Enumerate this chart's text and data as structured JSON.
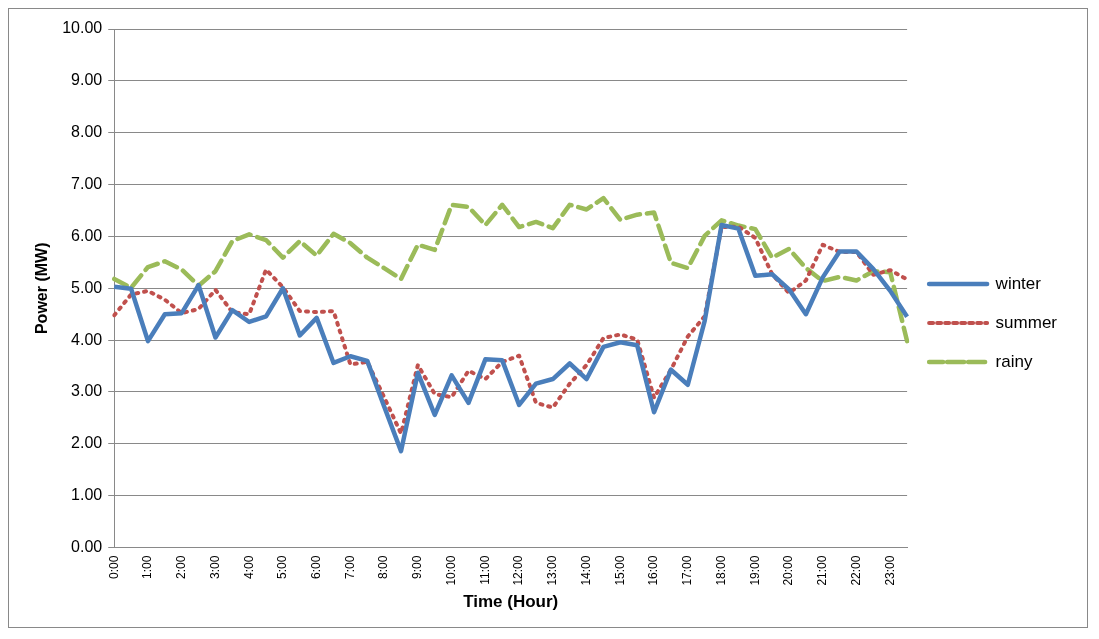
{
  "chart_data": {
    "type": "line",
    "xlabel": "Time (Hour)",
    "ylabel": "Power (MW)",
    "categories": [
      "0:00",
      null,
      "1:00",
      null,
      "2:00",
      null,
      "3:00",
      null,
      "4:00",
      null,
      "5:00",
      null,
      "6:00",
      null,
      "7:00",
      null,
      "8:00",
      null,
      "9:00",
      null,
      "10:00",
      null,
      "11:00",
      null,
      "12:00",
      null,
      "13:00",
      null,
      "14:00",
      null,
      "15:00",
      null,
      "16:00",
      null,
      "17:00",
      null,
      "18:00",
      null,
      "19:00",
      null,
      "20:00",
      null,
      "21:00",
      null,
      "22:00",
      null,
      "23:00",
      null
    ],
    "series": [
      {
        "name": "winter",
        "color": "#4a7ebb",
        "line_style": "solid",
        "values": [
          5.03,
          4.99,
          3.98,
          4.5,
          4.52,
          5.06,
          4.05,
          4.58,
          4.35,
          4.46,
          5.0,
          4.09,
          4.43,
          3.56,
          3.69,
          3.6,
          2.72,
          1.86,
          3.37,
          2.56,
          3.32,
          2.79,
          3.63,
          3.61,
          2.75,
          3.16,
          3.25,
          3.55,
          3.25,
          3.87,
          3.96,
          3.9,
          2.61,
          3.43,
          3.14,
          4.37,
          6.22,
          6.15,
          5.24,
          5.27,
          4.98,
          4.5,
          5.21,
          5.71,
          5.71,
          5.37,
          4.95,
          4.45
        ]
      },
      {
        "name": "summer",
        "color": "#c0504d",
        "line_style": "dotted",
        "values": [
          4.48,
          4.88,
          4.95,
          4.78,
          4.52,
          4.6,
          4.97,
          4.54,
          4.5,
          5.36,
          5.02,
          4.56,
          4.54,
          4.56,
          3.53,
          3.58,
          2.9,
          2.2,
          3.52,
          2.96,
          2.9,
          3.41,
          3.25,
          3.58,
          3.7,
          2.79,
          2.7,
          3.16,
          3.52,
          4.04,
          4.11,
          4.01,
          2.89,
          3.43,
          4.07,
          4.46,
          6.18,
          6.19,
          5.97,
          5.27,
          4.91,
          5.15,
          5.84,
          5.7,
          5.7,
          5.26,
          5.35,
          5.17
        ]
      },
      {
        "name": "rainy",
        "color": "#9bbb59",
        "line_style": "dashed",
        "values": [
          5.18,
          5.01,
          5.41,
          5.52,
          5.36,
          5.05,
          5.33,
          5.91,
          6.04,
          5.93,
          5.59,
          5.91,
          5.63,
          6.05,
          5.87,
          5.59,
          5.39,
          5.18,
          5.84,
          5.74,
          6.61,
          6.57,
          6.22,
          6.61,
          6.18,
          6.28,
          6.16,
          6.61,
          6.52,
          6.74,
          6.32,
          6.42,
          6.46,
          5.49,
          5.39,
          6.01,
          6.31,
          6.21,
          6.14,
          5.59,
          5.76,
          5.39,
          5.14,
          5.22,
          5.15,
          5.33,
          5.31,
          3.98
        ]
      }
    ],
    "ylim": [
      0,
      10
    ],
    "yticks": [
      {
        "value": 0,
        "label": "0.00"
      },
      {
        "value": 1,
        "label": "1.00"
      },
      {
        "value": 2,
        "label": "2.00"
      },
      {
        "value": 3,
        "label": "3.00"
      },
      {
        "value": 4,
        "label": "4.00"
      },
      {
        "value": 5,
        "label": "5.00"
      },
      {
        "value": 6,
        "label": "6.00"
      },
      {
        "value": 7,
        "label": "7.00"
      },
      {
        "value": 8,
        "label": "8.00"
      },
      {
        "value": 9,
        "label": "9.00"
      },
      {
        "value": 10,
        "label": "10.00"
      }
    ],
    "grid": "y",
    "legend": "right",
    "marker": "none"
  }
}
